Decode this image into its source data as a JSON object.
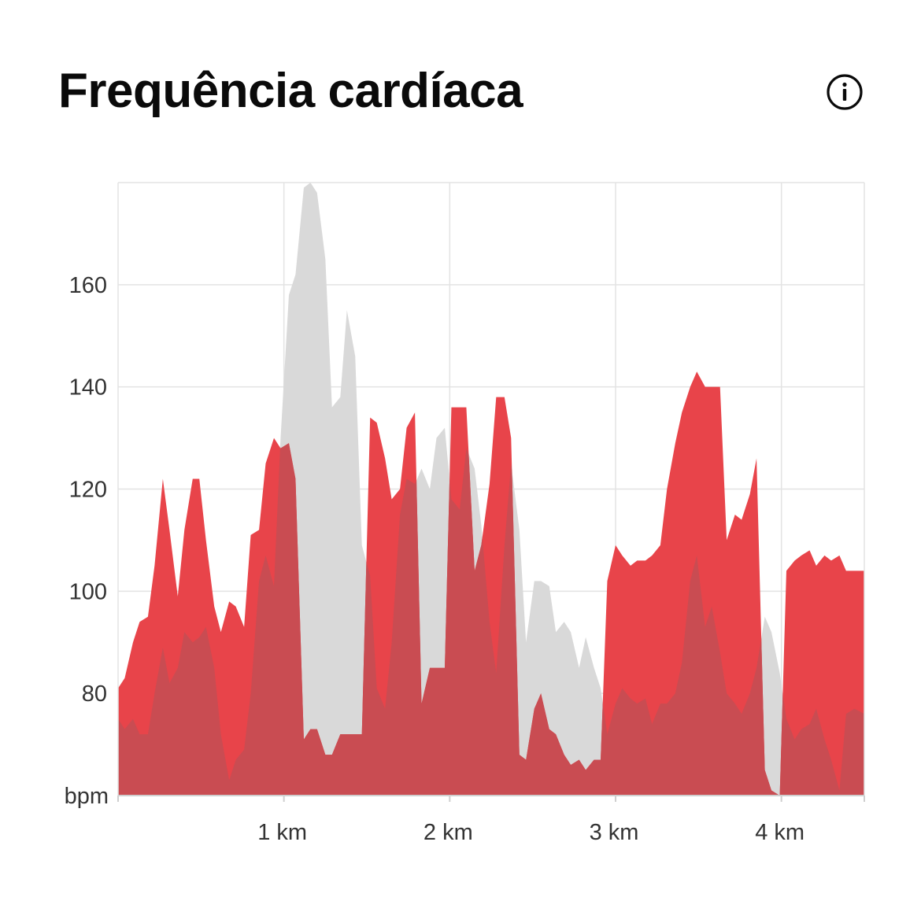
{
  "header": {
    "title": "Frequência cardíaca",
    "info_icon": "info-icon"
  },
  "chart_data": {
    "type": "area",
    "title": "Frequência cardíaca",
    "xlabel": "",
    "ylabel": "bpm",
    "y_unit": "bpm",
    "xlim": [
      0,
      4.5
    ],
    "ylim": [
      60,
      180
    ],
    "grid": true,
    "legend": "none",
    "x_ticks": [
      {
        "value": 1,
        "label": "1 km"
      },
      {
        "value": 2,
        "label": "2 km"
      },
      {
        "value": 3,
        "label": "3 km"
      },
      {
        "value": 4,
        "label": "4 km"
      }
    ],
    "y_ticks": [
      {
        "value": 80,
        "label": "80"
      },
      {
        "value": 100,
        "label": "100"
      },
      {
        "value": 120,
        "label": "120"
      },
      {
        "value": 140,
        "label": "140"
      },
      {
        "value": 160,
        "label": "160"
      }
    ],
    "colors": {
      "current": "#e8444a",
      "comparison": "#d9d9d9",
      "overlap": "#c94c52",
      "grid": "#e3e3e3",
      "axis_text": "#333333"
    },
    "series": [
      {
        "role": "comparison",
        "color": "#d9d9d9",
        "x": [
          0,
          0.04,
          0.09,
          0.13,
          0.18,
          0.22,
          0.27,
          0.31,
          0.36,
          0.4,
          0.45,
          0.49,
          0.53,
          0.58,
          0.62,
          0.67,
          0.71,
          0.76,
          0.8,
          0.85,
          0.89,
          0.94,
          0.98,
          1.03,
          1.07,
          1.12,
          1.16,
          1.2,
          1.25,
          1.29,
          1.34,
          1.38,
          1.43,
          1.47,
          1.52,
          1.56,
          1.61,
          1.65,
          1.7,
          1.74,
          1.79,
          1.83,
          1.88,
          1.92,
          1.97,
          2.01,
          2.06,
          2.1,
          2.15,
          2.19,
          2.24,
          2.28,
          2.33,
          2.37,
          2.42,
          2.46,
          2.51,
          2.55,
          2.6,
          2.64,
          2.69,
          2.73,
          2.78,
          2.82,
          2.87,
          2.91,
          2.95,
          3.0,
          3.04,
          3.09,
          3.13,
          3.18,
          3.22,
          3.27,
          3.31,
          3.36,
          3.4,
          3.45,
          3.49,
          3.54,
          3.58,
          3.63,
          3.67,
          3.72,
          3.76,
          3.81,
          3.85,
          3.9,
          3.94,
          3.99,
          4.03,
          4.08,
          4.12,
          4.17,
          4.21,
          4.26,
          4.3,
          4.35,
          4.39,
          4.44,
          4.5
        ],
        "y": [
          75,
          73,
          75,
          72,
          72,
          80,
          89,
          82,
          85,
          92,
          90,
          91,
          93,
          85,
          72,
          63,
          67,
          69,
          80,
          102,
          107,
          101,
          130,
          158,
          162,
          179,
          180,
          178,
          165,
          136,
          138,
          155,
          146,
          109,
          103,
          81,
          77,
          90,
          115,
          122,
          121,
          124,
          120,
          130,
          132,
          118,
          116,
          128,
          124,
          113,
          94,
          84,
          109,
          125,
          112,
          90,
          102,
          102,
          101,
          92,
          94,
          92,
          85,
          91,
          85,
          81,
          72,
          78,
          81,
          79,
          78,
          79,
          74,
          78,
          78,
          80,
          86,
          102,
          107,
          93,
          97,
          88,
          80,
          78,
          76,
          80,
          85,
          95,
          92,
          84,
          75,
          71,
          73,
          74,
          77,
          71,
          67,
          61,
          76,
          77,
          76
        ]
      },
      {
        "role": "current",
        "color": "#e8444a",
        "x": [
          0,
          0.04,
          0.09,
          0.13,
          0.18,
          0.22,
          0.27,
          0.31,
          0.36,
          0.4,
          0.45,
          0.49,
          0.53,
          0.58,
          0.62,
          0.67,
          0.71,
          0.76,
          0.8,
          0.85,
          0.89,
          0.94,
          0.98,
          1.03,
          1.07,
          1.12,
          1.16,
          1.2,
          1.25,
          1.29,
          1.34,
          1.38,
          1.43,
          1.47,
          1.52,
          1.56,
          1.61,
          1.65,
          1.7,
          1.74,
          1.79,
          1.83,
          1.88,
          1.92,
          1.97,
          2.01,
          2.06,
          2.1,
          2.15,
          2.19,
          2.24,
          2.28,
          2.33,
          2.37,
          2.42,
          2.46,
          2.51,
          2.55,
          2.6,
          2.64,
          2.69,
          2.73,
          2.78,
          2.82,
          2.87,
          2.91,
          2.95,
          3.0,
          3.04,
          3.09,
          3.13,
          3.18,
          3.22,
          3.27,
          3.31,
          3.36,
          3.4,
          3.45,
          3.49,
          3.54,
          3.58,
          3.63,
          3.67,
          3.72,
          3.76,
          3.81,
          3.85,
          3.9,
          3.94,
          3.99,
          4.03,
          4.08,
          4.12,
          4.17,
          4.21,
          4.26,
          4.3,
          4.35,
          4.39,
          4.44,
          4.5
        ],
        "y": [
          81,
          83,
          90,
          94,
          95,
          105,
          122,
          112,
          99,
          112,
          122,
          122,
          110,
          97,
          92,
          98,
          97,
          93,
          111,
          112,
          125,
          130,
          128,
          129,
          122,
          71,
          73,
          73,
          68,
          68,
          72,
          72,
          72,
          72,
          134,
          133,
          126,
          118,
          120,
          132,
          135,
          78,
          85,
          85,
          85,
          136,
          136,
          136,
          104,
          109,
          121,
          138,
          138,
          130,
          68,
          67,
          77,
          80,
          73,
          72,
          68,
          66,
          67,
          65,
          67,
          67,
          102,
          109,
          107,
          105,
          106,
          106,
          107,
          109,
          120,
          129,
          135,
          140,
          143,
          140,
          140,
          140,
          110,
          115,
          114,
          119,
          126,
          65,
          61,
          60,
          104,
          106,
          107,
          108,
          105,
          107,
          106,
          107,
          104,
          104,
          104
        ]
      }
    ]
  }
}
